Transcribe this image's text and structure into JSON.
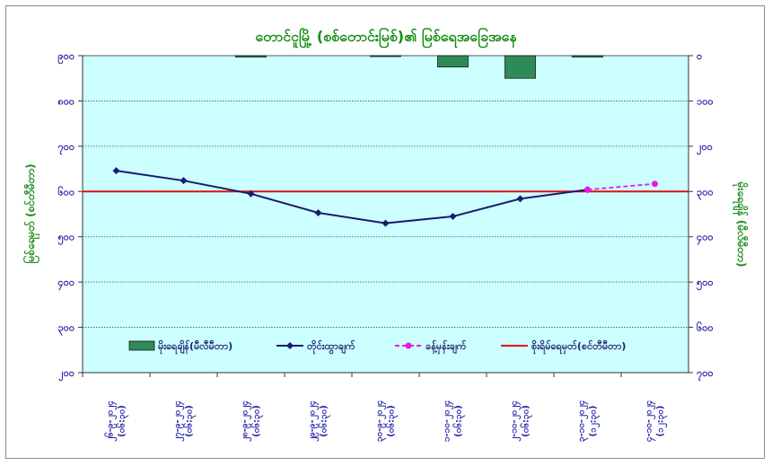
{
  "chart_data": {
    "type": "line",
    "title": "တောင်ငူမြို့ (စစ်တောင်းမြစ်)၏ မြစ်ရေအခြေအနေ",
    "y_left_label": "မြစ်ရေမှတ် (စင်တီမီတာ)",
    "y_right_label": "မိုးရေချိန် (မီလီမီတာ)",
    "y_left_ticks": [
      "၉၀၀",
      "၈၀၀",
      "၇၀၀",
      "၆၀၀",
      "၅၀၀",
      "၄၀၀",
      "၃၀၀",
      "၂၀၀"
    ],
    "y_left_ylim": [
      200,
      900
    ],
    "y_right_ticks": [
      "၀",
      "၁၀၀",
      "၂၀၀",
      "၃၀၀",
      "၄၀၀",
      "၅၀၀",
      "၆၀၀",
      "၇၀၀"
    ],
    "y_right_ylim": [
      0,
      700
    ],
    "categories": [
      [
        "၂၆-၉-၂၀၂၄",
        "(၀၆:၃၀)"
      ],
      [
        "၂၇-၉-၂၀၂၄",
        "(၀၆:၃၀)"
      ],
      [
        "၂၈-၉-၂၀၂၄",
        "(၀၆:၃၀)"
      ],
      [
        "၂၉-၉-၂၀၂၄",
        "(၀၆:၃၀)"
      ],
      [
        "၃၀-၉-၂၀၂၄",
        "(၀၆:၃၀)"
      ],
      [
        "၁-၁၀-၂၀၂၄",
        "(၀၆:၃၀)"
      ],
      [
        "၂-၁၀-၂၀၂၄",
        "(၀၆:၃၀)"
      ],
      [
        "၃-၁၀-၂၀၂၄",
        "(၁၂:၃၀)"
      ],
      [
        "၄-၁၀-၂၀၂၄",
        "(၁၂:၃၀)"
      ]
    ],
    "series": [
      {
        "name": "မိုးရေချိန်(မီလီမီတာ)",
        "kind": "bar",
        "color": "#2e8b57",
        "values": [
          0,
          0,
          3,
          0,
          2,
          25,
          50,
          3,
          0
        ]
      },
      {
        "name": "တိုင်းထွာချက်",
        "kind": "line",
        "color": "#1a1a6e",
        "values": [
          646,
          624,
          595,
          553,
          530,
          545,
          584,
          604,
          null
        ]
      },
      {
        "name": "ခန့်မှန်းချက်",
        "kind": "dashed",
        "color": "#e619e6",
        "values": [
          null,
          null,
          null,
          null,
          null,
          null,
          null,
          604,
          617
        ]
      },
      {
        "name": "စိုးရိမ်ရေမှတ်(စင်တီမီတာ)",
        "kind": "hline",
        "color": "#e01010",
        "value": 600
      }
    ],
    "grid": true,
    "legend_position": "bottom-inside"
  }
}
